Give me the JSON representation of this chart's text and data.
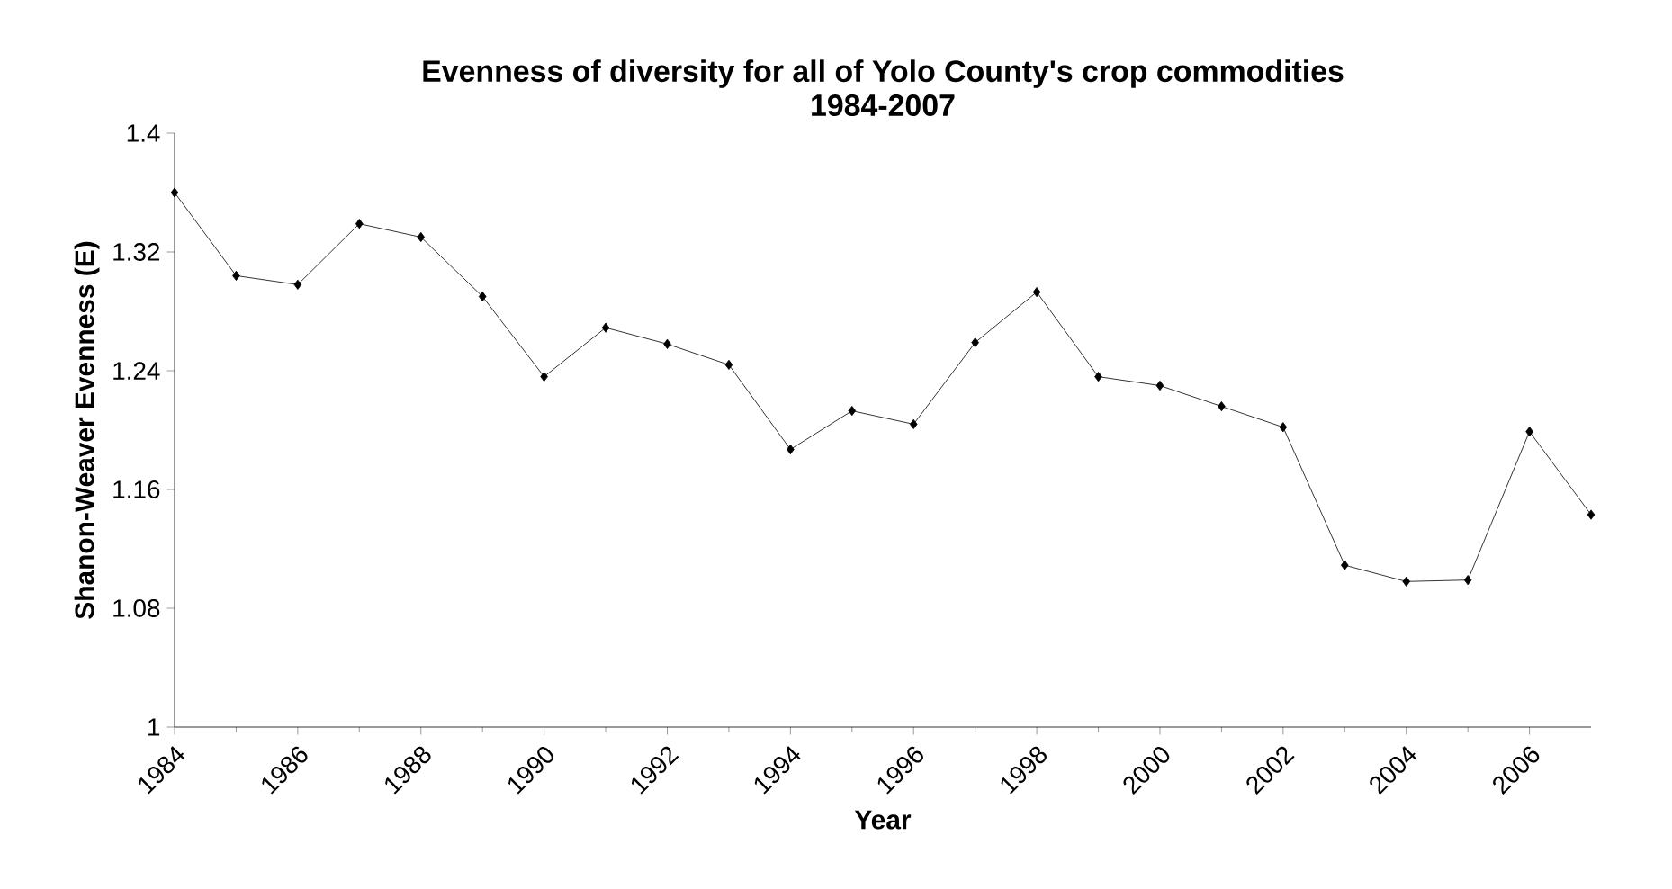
{
  "chart_data": {
    "type": "line",
    "title": "Evenness of diversity for all of Yolo County's crop commodities",
    "subtitle": "1984-2007",
    "xlabel": "Year",
    "ylabel": "Shanon-Weaver Evenness (E)",
    "x": [
      1984,
      1985,
      1986,
      1987,
      1988,
      1989,
      1990,
      1991,
      1992,
      1993,
      1994,
      1995,
      1996,
      1997,
      1998,
      1999,
      2000,
      2001,
      2002,
      2003,
      2004,
      2005,
      2006,
      2007
    ],
    "series": [
      {
        "color": "#000000",
        "values": [
          1.36,
          1.304,
          1.298,
          1.339,
          1.33,
          1.29,
          1.236,
          1.269,
          1.258,
          1.244,
          1.187,
          1.213,
          1.204,
          1.259,
          1.293,
          1.236,
          1.23,
          1.216,
          1.202,
          1.109,
          1.098,
          1.099,
          1.199,
          1.143
        ]
      }
    ],
    "xlim": [
      1984,
      2007
    ],
    "xticks": [
      1984,
      1986,
      1988,
      1990,
      1992,
      1994,
      1996,
      1998,
      2000,
      2002,
      2004,
      2006
    ],
    "ylim": [
      1,
      1.4
    ],
    "yticks": [
      1,
      1.08,
      1.16,
      1.24,
      1.32,
      1.4
    ],
    "grid": false,
    "marker": "diamond",
    "line_style": "solid"
  }
}
